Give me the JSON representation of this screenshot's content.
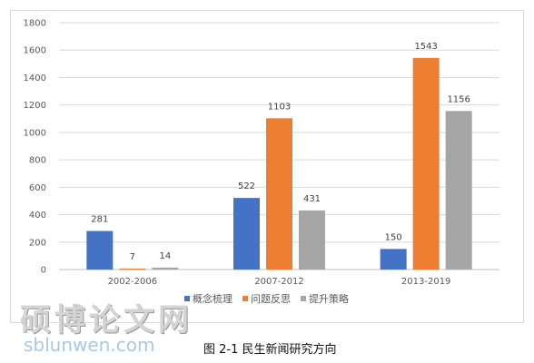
{
  "chart_data": {
    "type": "bar",
    "categories": [
      "2002-2006",
      "2007-2012",
      "2013-2019"
    ],
    "series": [
      {
        "name": "概念梳理",
        "values": [
          281,
          522,
          150
        ],
        "color": "#4472c4"
      },
      {
        "name": "问题反思",
        "values": [
          7,
          1103,
          1543
        ],
        "color": "#ed7d31"
      },
      {
        "name": "提升策略",
        "values": [
          14,
          431,
          1156
        ],
        "color": "#a5a5a5"
      }
    ],
    "ylim": [
      0,
      1800
    ],
    "yticks": [
      0,
      200,
      400,
      600,
      800,
      1000,
      1200,
      1400,
      1600,
      1800
    ],
    "grid": true,
    "legend": "bottom",
    "title": "",
    "xlabel": "",
    "ylabel": ""
  },
  "caption": "图 2-1  民生新闻研究方向",
  "watermark": {
    "chinese": "硕博论文网",
    "site": "sblunwen.com"
  }
}
